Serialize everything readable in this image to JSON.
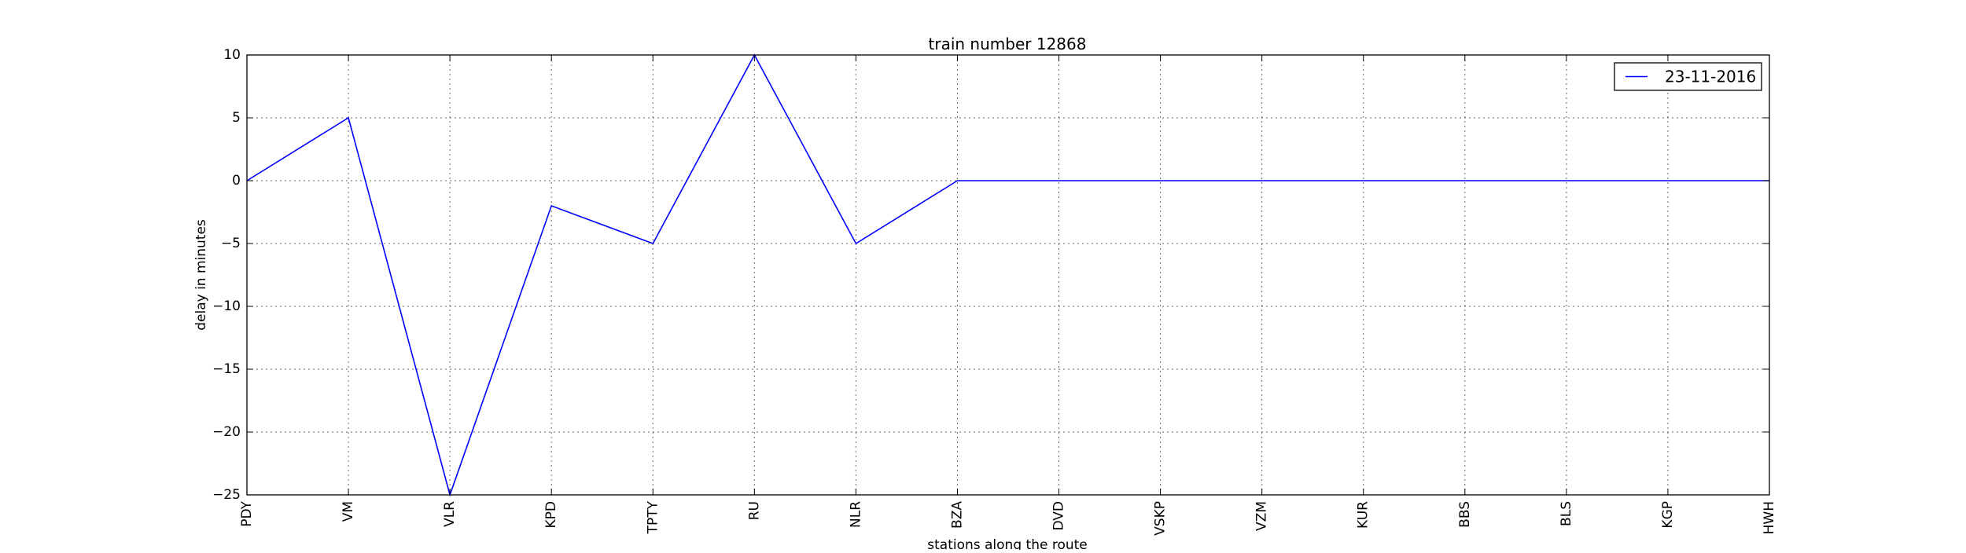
{
  "chart_data": {
    "type": "line",
    "title": "train number 12868",
    "xlabel": "stations along the route",
    "ylabel": "delay in minutes",
    "categories": [
      "PDY",
      "VM",
      "VLR",
      "KPD",
      "TPTY",
      "RU",
      "NLR",
      "BZA",
      "DVD",
      "VSKP",
      "VZM",
      "KUR",
      "BBS",
      "BLS",
      "KGP",
      "HWH"
    ],
    "series": [
      {
        "name": "23-11-2016",
        "values": [
          0,
          5,
          -25,
          -2,
          -5,
          10,
          -5,
          0,
          0,
          0,
          0,
          0,
          0,
          0,
          0,
          0
        ],
        "color": "#0000ff"
      }
    ],
    "ylim": [
      -25,
      10
    ],
    "yticks": [
      10,
      5,
      0,
      -5,
      -10,
      -15,
      -20,
      -25
    ],
    "ytick_labels": [
      "10",
      "5",
      "0",
      "−5",
      "−10",
      "−15",
      "−20",
      "−25"
    ],
    "grid": true,
    "legend_position": "top-right"
  }
}
